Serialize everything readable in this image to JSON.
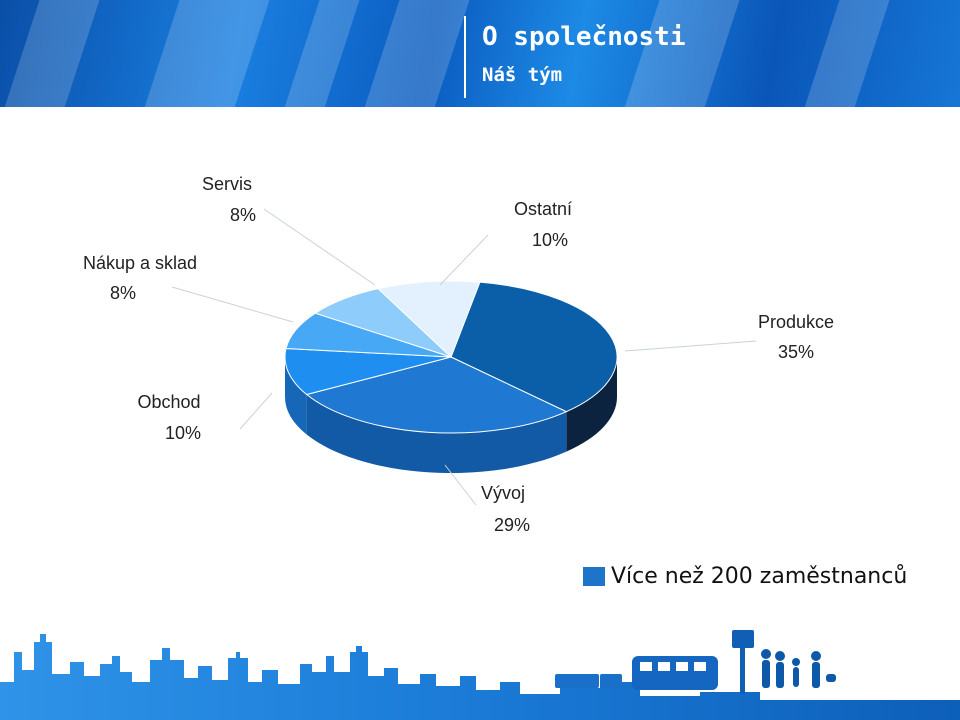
{
  "header": {
    "title": "O společnosti",
    "subtitle": "Náš tým"
  },
  "legend": {
    "label": "Více než 200 zaměstnanců",
    "color": "#1e74c8"
  },
  "chart_data": {
    "type": "pie",
    "title": "",
    "slices": [
      {
        "name": "Produkce",
        "value": 35,
        "label": "35%",
        "color": "#0a5fa8",
        "side": "#0c2340"
      },
      {
        "name": "Vývoj",
        "value": 29,
        "label": "29%",
        "color": "#1f78d2",
        "side": "#125aa6"
      },
      {
        "name": "Obchod",
        "value": 10,
        "label": "10%",
        "color": "#1e8ff0",
        "side": "#1667b8"
      },
      {
        "name": "Nákup a sklad",
        "value": 8,
        "label": "8%",
        "color": "#47a9f6",
        "side": "#2b7cc6"
      },
      {
        "name": "Servis",
        "value": 8,
        "label": "8%",
        "color": "#8ecdfb",
        "side": "#5a9fd6"
      },
      {
        "name": "Ostatní",
        "value": 10,
        "label": "10%",
        "color": "#e2f1fd",
        "side": "#a9c8e2"
      }
    ]
  }
}
